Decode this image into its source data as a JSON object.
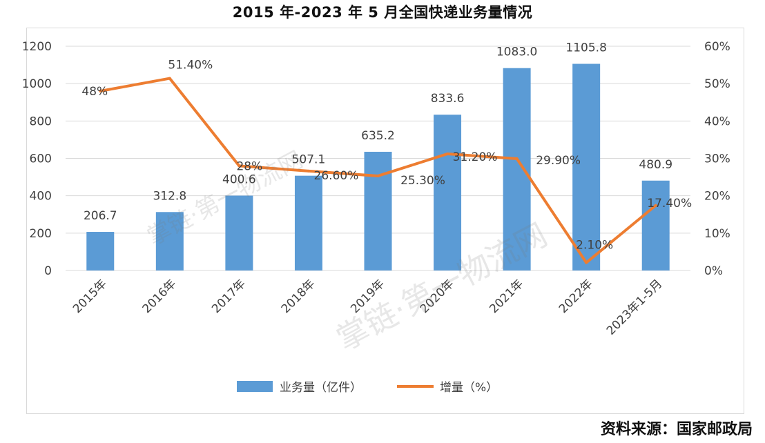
{
  "chart_data": {
    "type": "bar+line",
    "title": "2015 年-2023 年 5 月全国快递业务量情况",
    "categories": [
      "2015年",
      "2016年",
      "2017年",
      "2018年",
      "2019年",
      "2020年",
      "2021年",
      "2022年",
      "2023年1-5月"
    ],
    "bar_series": {
      "name": "业务量（亿件）",
      "color": "#5b9bd5",
      "values": [
        206.7,
        312.8,
        400.6,
        507.1,
        635.2,
        833.6,
        1083.0,
        1105.8,
        480.9
      ],
      "labels": [
        "206.7",
        "312.8",
        "400.6",
        "507.1",
        "635.2",
        "833.6",
        "1083.0",
        "1105.8",
        "480.9"
      ]
    },
    "line_series": {
      "name": "增量（%）",
      "color": "#ed7d31",
      "values": [
        48,
        51.4,
        28,
        26.6,
        25.3,
        31.2,
        29.9,
        2.1,
        17.4
      ],
      "labels": [
        "48%",
        "51.40%",
        "28%",
        "26.60%",
        "25.30%",
        "31.20%",
        "29.90%",
        "2.10%",
        "17.40%"
      ]
    },
    "y_left": {
      "min": 0,
      "max": 1200,
      "ticks": [
        "0",
        "200",
        "400",
        "600",
        "800",
        "1000",
        "1200"
      ]
    },
    "y_right": {
      "min": 0,
      "max": 60,
      "ticks": [
        "0%",
        "10%",
        "20%",
        "30%",
        "40%",
        "50%",
        "60%"
      ]
    },
    "grid": true,
    "legend_position": "bottom"
  },
  "watermark": "掌链·第一物流网",
  "source": "资料来源：国家邮政局"
}
